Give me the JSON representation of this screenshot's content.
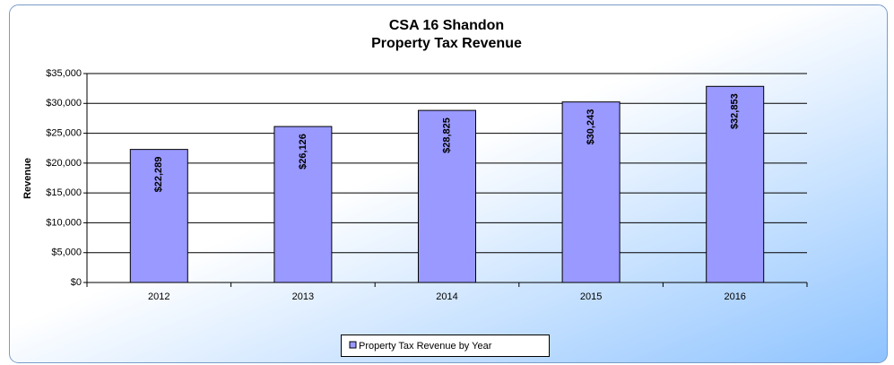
{
  "chart_data": {
    "type": "bar",
    "title": "CSA 16 Shandon",
    "subtitle": "Property Tax Revenue",
    "y_label": "Revenue",
    "categories": [
      "2012",
      "2013",
      "2014",
      "2015",
      "2016"
    ],
    "series": [
      {
        "name": "Property Tax Revenue by Year",
        "color": "#9999ff",
        "values": [
          22289,
          26126,
          28825,
          30243,
          32853
        ],
        "value_labels": [
          "$22,289",
          "$26,126",
          "$28,825",
          "$30,243",
          "$32,853"
        ]
      }
    ],
    "ylim": [
      0,
      35000
    ],
    "yticks": [
      {
        "value": 0,
        "label": "$0"
      },
      {
        "value": 5000,
        "label": "$5,000"
      },
      {
        "value": 10000,
        "label": "$10,000"
      },
      {
        "value": 15000,
        "label": "$15,000"
      },
      {
        "value": 20000,
        "label": "$20,000"
      },
      {
        "value": 25000,
        "label": "$25,000"
      },
      {
        "value": 30000,
        "label": "$30,000"
      },
      {
        "value": 35000,
        "label": "$35,000"
      }
    ],
    "grid": true,
    "legend": "bottom"
  }
}
